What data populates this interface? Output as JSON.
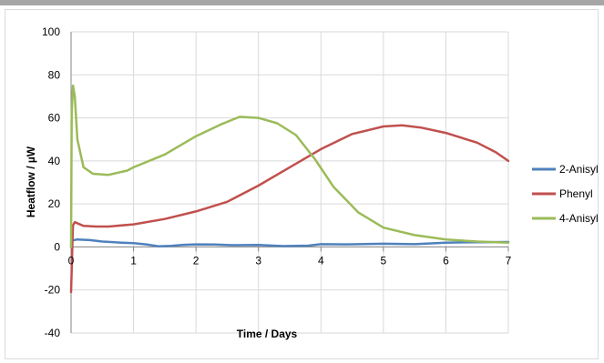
{
  "chart_data": {
    "type": "line",
    "title": "",
    "xlabel": "Time / Days",
    "ylabel": "Heatflow / µW",
    "xlim": [
      0,
      7
    ],
    "ylim": [
      -40,
      100
    ],
    "xticks": [
      0,
      1,
      2,
      3,
      4,
      5,
      6,
      7
    ],
    "yticks": [
      -40,
      -20,
      0,
      20,
      40,
      60,
      80,
      100
    ],
    "grid": true,
    "legend_position": "right",
    "series": [
      {
        "name": "2-Anisyl",
        "color": "#4f81bd",
        "points": [
          [
            0,
            0
          ],
          [
            0.02,
            3
          ],
          [
            0.1,
            3.5
          ],
          [
            0.3,
            3.2
          ],
          [
            0.5,
            2.5
          ],
          [
            0.8,
            2
          ],
          [
            1.0,
            1.8
          ],
          [
            1.2,
            1.2
          ],
          [
            1.4,
            0.3
          ],
          [
            1.6,
            0.5
          ],
          [
            1.8,
            1
          ],
          [
            2.0,
            1.2
          ],
          [
            2.3,
            1.1
          ],
          [
            2.6,
            0.8
          ],
          [
            3.0,
            0.9
          ],
          [
            3.4,
            0.4
          ],
          [
            3.8,
            0.6
          ],
          [
            4.0,
            1.3
          ],
          [
            4.4,
            1.2
          ],
          [
            5.0,
            1.5
          ],
          [
            5.5,
            1.3
          ],
          [
            6.0,
            2
          ],
          [
            6.5,
            2.2
          ],
          [
            7.0,
            2.3
          ]
        ]
      },
      {
        "name": "Phenyl",
        "color": "#c0504d",
        "points": [
          [
            0,
            -21
          ],
          [
            0.03,
            10
          ],
          [
            0.06,
            11.5
          ],
          [
            0.2,
            9.8
          ],
          [
            0.4,
            9.5
          ],
          [
            0.6,
            9.5
          ],
          [
            1.0,
            10.5
          ],
          [
            1.5,
            13
          ],
          [
            2.0,
            16.5
          ],
          [
            2.5,
            21
          ],
          [
            3.0,
            28.5
          ],
          [
            3.5,
            37
          ],
          [
            4.0,
            45.5
          ],
          [
            4.5,
            52.5
          ],
          [
            5.0,
            56
          ],
          [
            5.3,
            56.5
          ],
          [
            5.6,
            55.5
          ],
          [
            6.0,
            53
          ],
          [
            6.5,
            48.5
          ],
          [
            6.8,
            44
          ],
          [
            7.0,
            40
          ]
        ]
      },
      {
        "name": "4-Anisyl",
        "color": "#9bbb59",
        "points": [
          [
            0,
            0
          ],
          [
            0.01,
            62
          ],
          [
            0.03,
            75
          ],
          [
            0.06,
            70
          ],
          [
            0.1,
            50
          ],
          [
            0.2,
            37
          ],
          [
            0.35,
            34
          ],
          [
            0.6,
            33.5
          ],
          [
            0.9,
            35.5
          ],
          [
            1.0,
            37
          ],
          [
            1.5,
            43
          ],
          [
            2.0,
            51.5
          ],
          [
            2.4,
            57
          ],
          [
            2.7,
            60.5
          ],
          [
            3.0,
            60
          ],
          [
            3.3,
            57.5
          ],
          [
            3.6,
            52
          ],
          [
            3.9,
            41
          ],
          [
            4.2,
            28
          ],
          [
            4.6,
            16
          ],
          [
            5.0,
            9
          ],
          [
            5.5,
            5.5
          ],
          [
            6.0,
            3.5
          ],
          [
            6.5,
            2.5
          ],
          [
            7.0,
            2
          ]
        ]
      }
    ]
  }
}
